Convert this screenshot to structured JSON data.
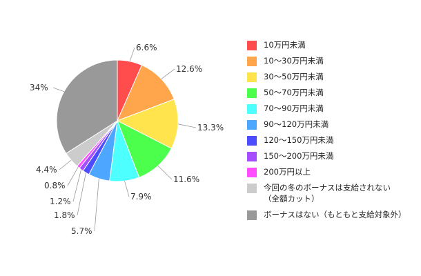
{
  "chart_data": {
    "type": "pie",
    "categories": [
      "10万円未満",
      "10～30万円未満",
      "30～50万円未満",
      "50～70万円未満",
      "70～90万円未満",
      "90～120万円未満",
      "120～150万円未満",
      "150～200万円未満",
      "200万円以上",
      "今回の冬のボーナスは支給されない（全額カット）",
      "ボーナスはない（もともと支給対象外）"
    ],
    "legend_lines": [
      [
        "10万円未満"
      ],
      [
        "10～30万円未満"
      ],
      [
        "30～50万円未満"
      ],
      [
        "50～70万円未満"
      ],
      [
        "70～90万円未満"
      ],
      [
        "90～120万円未満"
      ],
      [
        "120～150万円未満"
      ],
      [
        "150～200万円未満"
      ],
      [
        "200万円以上"
      ],
      [
        "今回の冬のボーナスは支給されない",
        "（全額カット）"
      ],
      [
        "ボーナスはない（もともと支給対象外）"
      ]
    ],
    "values": [
      6.6,
      12.6,
      13.3,
      11.6,
      7.9,
      5.7,
      1.8,
      1.2,
      0.8,
      4.4,
      34
    ],
    "labels": [
      "6.6%",
      "12.6%",
      "13.3%",
      "11.6%",
      "7.9%",
      "5.7%",
      "1.8%",
      "1.2%",
      "0.8%",
      "4.4%",
      "34%"
    ],
    "colors": [
      "#ff4d4d",
      "#ffa64d",
      "#ffe44d",
      "#4dff4d",
      "#4dffff",
      "#4da6ff",
      "#4d4dff",
      "#a64dff",
      "#ff4dff",
      "#cccccc",
      "#999999"
    ],
    "legend_position": "right"
  }
}
